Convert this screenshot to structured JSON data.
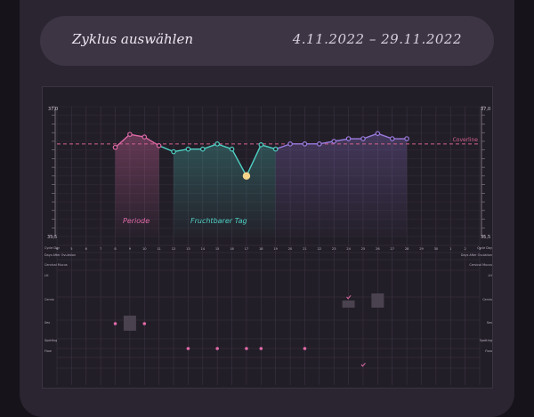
{
  "header": {
    "title": "Zyklus auswählen",
    "date_range": "4.11.2022 – 29.11.2022"
  },
  "chart": {
    "y_top_left": "37,0",
    "y_bottom_left": "35,5",
    "y_top_right": "37,0",
    "y_bottom_right": "35,5",
    "coverline_label": "Coverline",
    "period_label": "Periode",
    "fertile_label": "Fruchtbarer Tag",
    "colors": {
      "period": "#e06aa8",
      "fertile": "#4fd1c5",
      "later": "#9b7be0",
      "coverline": "#d6628f",
      "ovulation": "#f6d58a"
    }
  },
  "chart_data": {
    "type": "line",
    "x": [
      1,
      2,
      3,
      4,
      5,
      6,
      7,
      8,
      9,
      10,
      11,
      12,
      13,
      14,
      15,
      16,
      17,
      18,
      19,
      20,
      21,
      22,
      23,
      24,
      25,
      26,
      27,
      28,
      29,
      30
    ],
    "temperatures": [
      null,
      null,
      null,
      null,
      36.53,
      36.68,
      36.65,
      36.55,
      36.48,
      36.51,
      36.51,
      36.57,
      36.51,
      36.2,
      36.56,
      36.51,
      36.57,
      36.57,
      36.57,
      36.6,
      36.63,
      36.63,
      36.69,
      36.63,
      36.63,
      null,
      null,
      null,
      null,
      null
    ],
    "coverline": 36.57,
    "ylim": [
      35.5,
      37.0
    ],
    "period_days": [
      5,
      6,
      7,
      8
    ],
    "fertile_days": [
      9,
      10,
      11,
      12,
      13,
      14,
      15,
      16
    ],
    "ovulation_day": 14
  },
  "rows": {
    "labels_left": [
      "Cycle Day",
      "Days After Ovulation",
      "Cervical Mucus",
      "LH",
      "Cervix",
      "Sex",
      "Spotting",
      "Flow"
    ],
    "day_numbers": [
      "4",
      "5",
      "6",
      "7",
      "8",
      "9",
      "10",
      "11",
      "12",
      "13",
      "14",
      "15",
      "16",
      "17",
      "18",
      "19",
      "20",
      "21",
      "22",
      "23",
      "24",
      "25",
      "26",
      "27",
      "28",
      "29",
      "30",
      "1",
      "2",
      "3"
    ]
  }
}
